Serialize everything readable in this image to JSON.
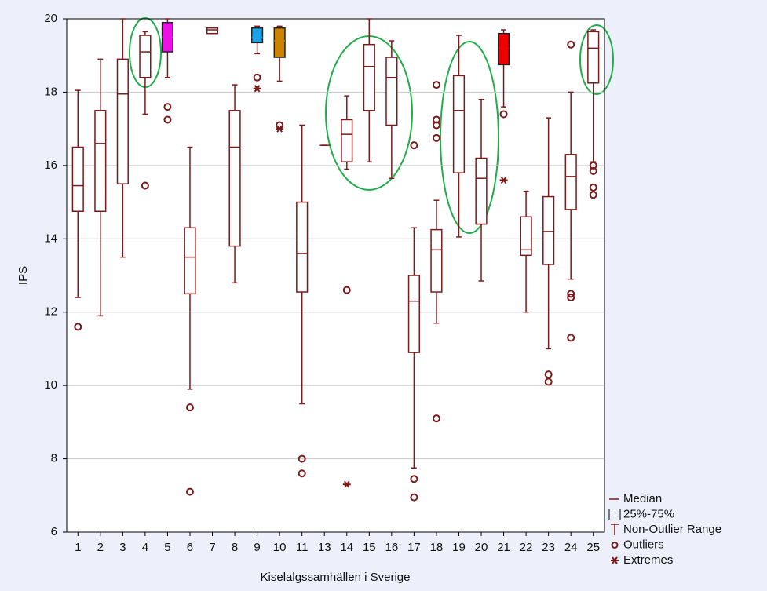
{
  "chart_data": {
    "type": "box",
    "y_label": "IPS",
    "x_label": "Kiselalgssamhällen i Sverige",
    "categories": [
      "1",
      "2",
      "3",
      "4",
      "5",
      "6",
      "7",
      "8",
      "9",
      "10",
      "11",
      "13",
      "14",
      "15",
      "16",
      "17",
      "18",
      "19",
      "20",
      "21",
      "22",
      "23",
      "24",
      "25"
    ],
    "boxes": [
      {
        "q1": 14.75,
        "median": 15.45,
        "q3": 16.5,
        "whisker_low": 12.4,
        "whisker_high": 18.05,
        "outliers": [
          11.6
        ],
        "extremes": [],
        "fill": "#ffffff"
      },
      {
        "q1": 14.75,
        "median": 16.6,
        "q3": 17.5,
        "whisker_low": 11.9,
        "whisker_high": 18.9,
        "outliers": [],
        "extremes": [],
        "fill": "#ffffff"
      },
      {
        "q1": 15.5,
        "median": 17.95,
        "q3": 18.9,
        "whisker_low": 13.5,
        "whisker_high": 20,
        "outliers": [],
        "extremes": [],
        "fill": "#ffffff"
      },
      {
        "q1": 18.4,
        "median": 19.1,
        "q3": 19.55,
        "whisker_low": 17.4,
        "whisker_high": 19.65,
        "outliers": [
          15.45
        ],
        "extremes": [],
        "fill": "#ffffff"
      },
      {
        "q1": 19.1,
        "median": 19.5,
        "q3": 19.9,
        "whisker_low": 18.4,
        "whisker_high": 20,
        "outliers": [
          17.6,
          17.25
        ],
        "extremes": [],
        "fill": "#ee10e8"
      },
      {
        "q1": 12.5,
        "median": 13.5,
        "q3": 14.3,
        "whisker_low": 9.9,
        "whisker_high": 16.5,
        "outliers": [
          9.4,
          7.1
        ],
        "extremes": [],
        "fill": "#ffffff"
      },
      {
        "q1": 19.6,
        "median": 19.7,
        "q3": 19.75,
        "whisker_low": 19.6,
        "whisker_high": 19.75,
        "outliers": [],
        "extremes": [],
        "fill": "#ffffff"
      },
      {
        "q1": 13.8,
        "median": 16.5,
        "q3": 17.5,
        "whisker_low": 12.8,
        "whisker_high": 18.2,
        "outliers": [],
        "extremes": [],
        "fill": "#ffffff"
      },
      {
        "q1": 19.35,
        "median": 19.5,
        "q3": 19.75,
        "whisker_low": 19.05,
        "whisker_high": 19.8,
        "outliers": [
          18.4
        ],
        "extremes": [
          18.1
        ],
        "fill": "#1aa3e8"
      },
      {
        "q1": 18.95,
        "median": 19.4,
        "q3": 19.75,
        "whisker_low": 18.3,
        "whisker_high": 19.8,
        "outliers": [
          17.1
        ],
        "extremes": [
          17.0
        ],
        "fill": "#cc8400"
      },
      {
        "q1": 12.55,
        "median": 13.6,
        "q3": 15.0,
        "whisker_low": 9.5,
        "whisker_high": 17.1,
        "outliers": [
          8.0,
          7.6
        ],
        "extremes": [],
        "fill": "#ffffff"
      },
      {
        "q1": 16.55,
        "median": 16.55,
        "q3": 16.55,
        "whisker_low": 16.55,
        "whisker_high": 16.55,
        "outliers": [],
        "extremes": [],
        "fill": "#ffffff"
      },
      {
        "q1": 16.1,
        "median": 16.85,
        "q3": 17.25,
        "whisker_low": 15.9,
        "whisker_high": 17.9,
        "outliers": [
          12.6
        ],
        "extremes": [
          7.3
        ],
        "fill": "#ffffff"
      },
      {
        "q1": 17.5,
        "median": 18.7,
        "q3": 19.3,
        "whisker_low": 16.1,
        "whisker_high": 20,
        "outliers": [],
        "extremes": [],
        "fill": "#ffffff"
      },
      {
        "q1": 17.1,
        "median": 18.4,
        "q3": 18.95,
        "whisker_low": 15.65,
        "whisker_high": 19.4,
        "outliers": [],
        "extremes": [],
        "fill": "#ffffff"
      },
      {
        "q1": 10.9,
        "median": 12.3,
        "q3": 13.0,
        "whisker_low": 7.75,
        "whisker_high": 14.3,
        "outliers": [
          16.55,
          7.45,
          6.95
        ],
        "extremes": [],
        "fill": "#ffffff"
      },
      {
        "q1": 12.55,
        "median": 13.7,
        "q3": 14.25,
        "whisker_low": 11.7,
        "whisker_high": 15.05,
        "outliers": [
          18.2,
          17.25,
          17.1,
          16.75,
          9.1
        ],
        "extremes": [],
        "fill": "#ffffff"
      },
      {
        "q1": 15.8,
        "median": 17.5,
        "q3": 18.45,
        "whisker_low": 14.05,
        "whisker_high": 19.55,
        "outliers": [],
        "extremes": [],
        "fill": "#ffffff"
      },
      {
        "q1": 14.4,
        "median": 15.65,
        "q3": 16.2,
        "whisker_low": 12.85,
        "whisker_high": 17.8,
        "outliers": [],
        "extremes": [],
        "fill": "#ffffff"
      },
      {
        "q1": 18.75,
        "median": 19.2,
        "q3": 19.6,
        "whisker_low": 17.6,
        "whisker_high": 19.7,
        "outliers": [
          17.4
        ],
        "extremes": [
          15.6
        ],
        "fill": "#ee0000"
      },
      {
        "q1": 13.55,
        "median": 13.7,
        "q3": 14.6,
        "whisker_low": 12.0,
        "whisker_high": 15.3,
        "outliers": [],
        "extremes": [],
        "fill": "#ffffff"
      },
      {
        "q1": 13.3,
        "median": 14.2,
        "q3": 15.15,
        "whisker_low": 11.0,
        "whisker_high": 17.3,
        "outliers": [
          10.3,
          10.1
        ],
        "extremes": [],
        "fill": "#ffffff"
      },
      {
        "q1": 14.8,
        "median": 15.7,
        "q3": 16.3,
        "whisker_low": 12.9,
        "whisker_high": 18.0,
        "outliers": [
          19.3,
          12.5,
          12.4,
          11.3
        ],
        "extremes": [],
        "fill": "#ffffff"
      },
      {
        "q1": 18.25,
        "median": 19.2,
        "q3": 19.65,
        "whisker_low": 16.1,
        "whisker_high": 19.7,
        "outliers": [
          16.0,
          15.85,
          15.4,
          15.2
        ],
        "extremes": [],
        "fill": "#ffffff"
      }
    ],
    "color": "#7b1a1a",
    "ylim": [
      6,
      20
    ],
    "yticks": [
      6,
      8,
      10,
      12,
      14,
      16,
      18,
      20
    ],
    "grid": true,
    "legend": [
      "Median",
      "25%-75%",
      "Non-Outlier Range",
      "Outliers",
      "Extremes"
    ]
  }
}
